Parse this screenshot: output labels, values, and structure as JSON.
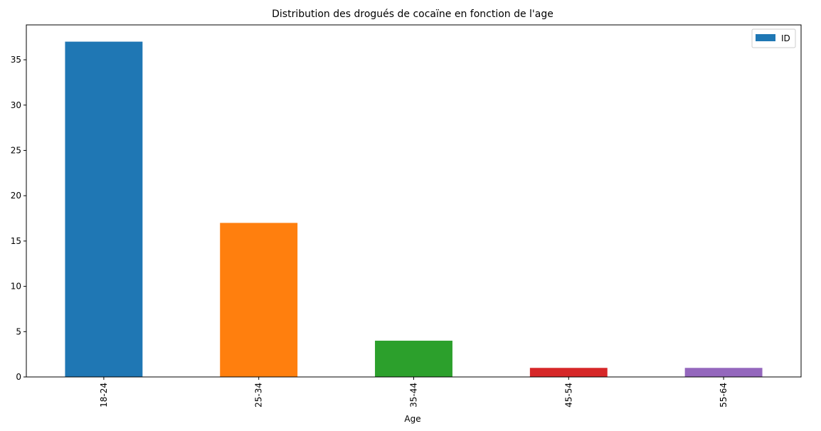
{
  "chart_data": {
    "type": "bar",
    "title": "Distribution des drogués de cocaïne en fonction de l'age",
    "xlabel": "Age",
    "ylabel": "",
    "categories": [
      "18-24",
      "25-34",
      "35-44",
      "45-54",
      "55-64"
    ],
    "series": [
      {
        "name": "ID",
        "values": [
          37,
          17,
          4,
          1,
          1
        ]
      }
    ],
    "bar_colors": [
      "#1f77b4",
      "#ff7f0e",
      "#2ca02c",
      "#d62728",
      "#9467bd"
    ],
    "legend_color": "#1f77b4",
    "ylim": [
      0,
      38.85
    ],
    "yticks": [
      0,
      5,
      10,
      15,
      20,
      25,
      30,
      35
    ],
    "grid": false,
    "legend_position": "top-right",
    "xtick_rotation": "vertical"
  }
}
